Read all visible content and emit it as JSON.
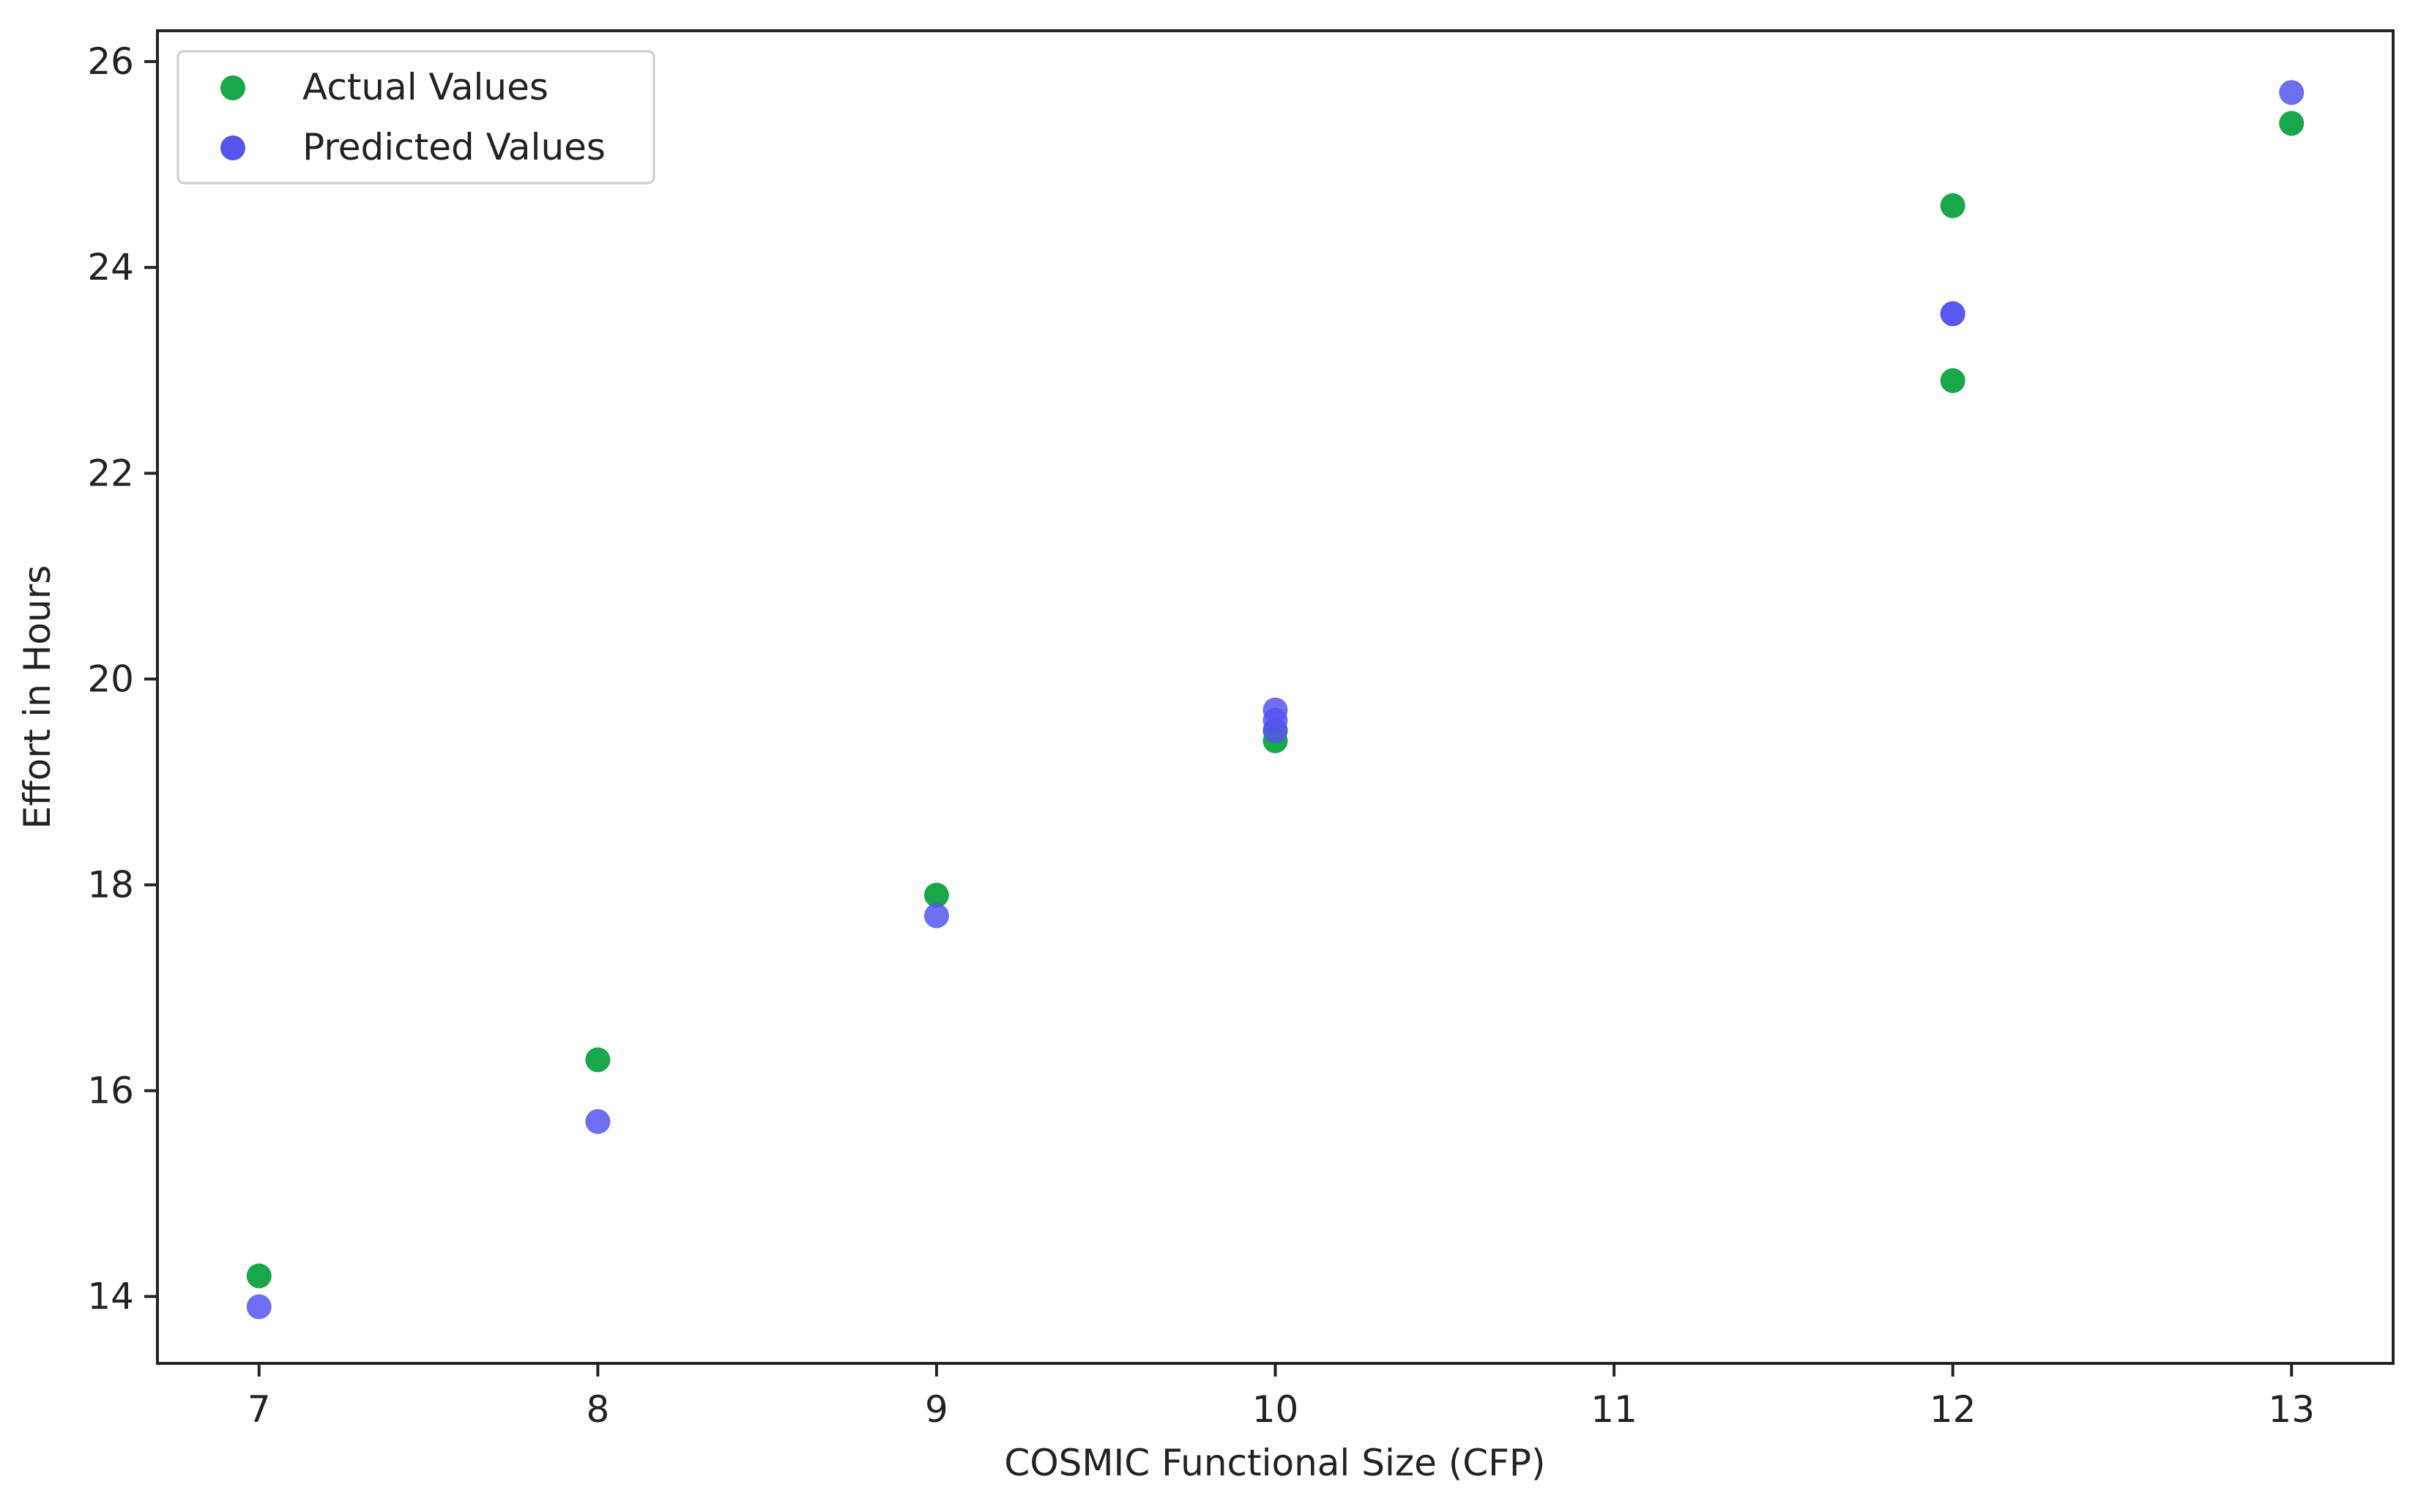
{
  "chart_data": {
    "type": "scatter",
    "xlabel": "COSMIC Functional Size (CFP)",
    "ylabel": "Effort in Hours",
    "xlim": [
      6.7,
      13.3
    ],
    "ylim": [
      13.35,
      26.3
    ],
    "xticks": [
      7,
      8,
      9,
      10,
      11,
      12,
      13
    ],
    "yticks": [
      14,
      16,
      18,
      20,
      22,
      24,
      26
    ],
    "legend_position": "top-left",
    "grid": false,
    "series": [
      {
        "name": "Actual Values",
        "color": "#1aa64a",
        "points": [
          {
            "x": 7,
            "y": 14.2
          },
          {
            "x": 8,
            "y": 16.3
          },
          {
            "x": 9,
            "y": 17.9
          },
          {
            "x": 10,
            "y": 19.4
          },
          {
            "x": 10,
            "y": 19.5
          },
          {
            "x": 12,
            "y": 24.6
          },
          {
            "x": 12,
            "y": 22.9
          },
          {
            "x": 13,
            "y": 25.4
          }
        ]
      },
      {
        "name": "Predicted Values",
        "color": "#5555ee",
        "points": [
          {
            "x": 7,
            "y": 13.9
          },
          {
            "x": 8,
            "y": 15.7
          },
          {
            "x": 9,
            "y": 17.7
          },
          {
            "x": 10,
            "y": 19.5
          },
          {
            "x": 10,
            "y": 19.6
          },
          {
            "x": 10,
            "y": 19.7
          },
          {
            "x": 12,
            "y": 23.55
          },
          {
            "x": 12,
            "y": 23.55
          },
          {
            "x": 13,
            "y": 25.7
          }
        ]
      }
    ]
  }
}
